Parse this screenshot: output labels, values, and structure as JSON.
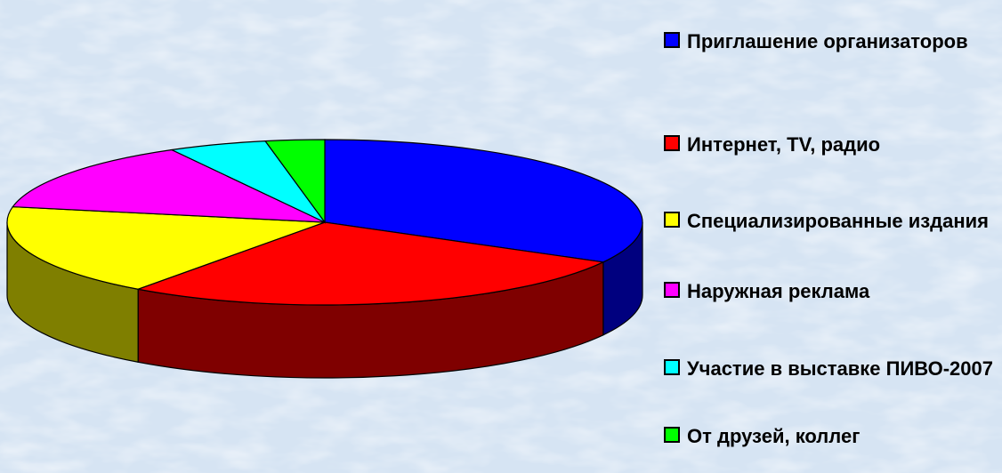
{
  "chart_data": {
    "type": "pie3d",
    "categories": [
      "Приглашение организаторов",
      "Интернет, TV, радио",
      "Специализированные издания",
      "Наружная реклама",
      "Участие в выставке ПИВО-2007",
      "От друзей, коллег"
    ],
    "values": [
      33,
      27,
      18,
      14,
      5,
      3
    ],
    "colors": [
      "#0000ff",
      "#ff0000",
      "#ffff00",
      "#ff00ff",
      "#00ffff",
      "#00ff00"
    ],
    "legend": "right"
  }
}
